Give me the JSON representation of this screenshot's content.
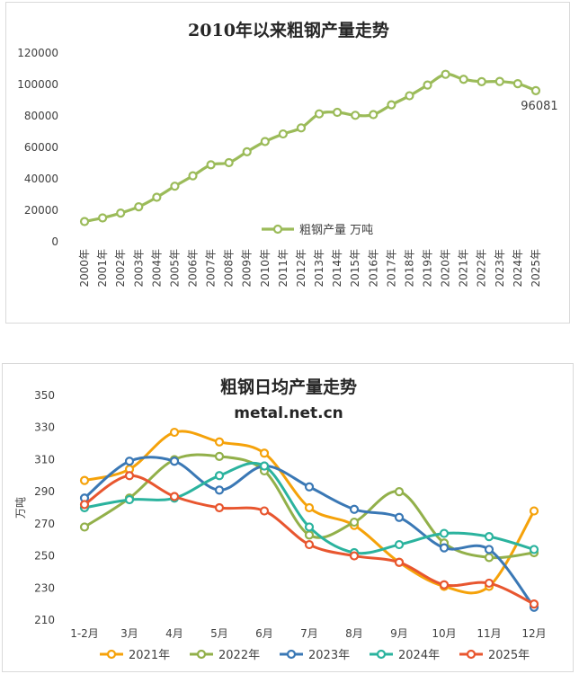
{
  "chart_data": [
    {
      "type": "line",
      "title": "2010年以来粗钢产量走势",
      "categories": [
        "2000年",
        "2001年",
        "2002年",
        "2003年",
        "2004年",
        "2005年",
        "2006年",
        "2007年",
        "2008年",
        "2009年",
        "2010年",
        "2011年",
        "2012年",
        "2013年",
        "2014年",
        "2015年",
        "2016年",
        "2017年",
        "2018年",
        "2019年",
        "2020年",
        "2021年",
        "2022年",
        "2023年",
        "2024年",
        "2025年"
      ],
      "series": [
        {
          "name": "粗钢产量 万吨",
          "color": "#9bbb59",
          "values": [
            12850,
            15163,
            18225,
            22234,
            28291,
            35324,
            41915,
            48929,
            50306,
            57218,
            63723,
            68528,
            72388,
            81314,
            82270,
            80383,
            80837,
            87074,
            92826,
            99634,
            106477,
            103279,
            101796,
            101908,
            100509,
            96081
          ]
        }
      ],
      "ylim": [
        0,
        120000
      ],
      "yticks": [
        0,
        20000,
        40000,
        60000,
        80000,
        100000,
        120000
      ],
      "data_labels": [
        {
          "index": 25,
          "text": "96081"
        }
      ],
      "legend": "center-right",
      "grid": false
    },
    {
      "type": "line",
      "title": "粗钢日均产量走势",
      "subtitle": "metal.net.cn",
      "ylabel": "万吨",
      "categories": [
        "1-2月",
        "3月",
        "4月",
        "5月",
        "6月",
        "7月",
        "8月",
        "9月",
        "10月",
        "11月",
        "12月"
      ],
      "series": [
        {
          "name": "2021年",
          "color": "#f5a20a",
          "values": [
            297,
            304,
            327,
            321,
            314,
            280,
            269,
            246,
            231,
            231,
            278
          ]
        },
        {
          "name": "2022年",
          "color": "#92b04a",
          "values": [
            268,
            286,
            310,
            312,
            303,
            263,
            271,
            290,
            258,
            249,
            252
          ]
        },
        {
          "name": "2023年",
          "color": "#3a78b5",
          "values": [
            286,
            309,
            309,
            291,
            306,
            293,
            279,
            274,
            255,
            254,
            218
          ]
        },
        {
          "name": "2024年",
          "color": "#2bb39e",
          "values": [
            280,
            285,
            286,
            300,
            306,
            268,
            252,
            257,
            264,
            262,
            254
          ]
        },
        {
          "name": "2025年",
          "color": "#e8562f",
          "values": [
            282,
            300,
            287,
            280,
            278,
            257,
            250,
            246,
            232,
            233,
            220
          ]
        }
      ],
      "ylim": [
        210,
        350
      ],
      "yticks": [
        210,
        230,
        250,
        270,
        290,
        310,
        330,
        350
      ],
      "legend": "bottom",
      "grid": false
    }
  ]
}
